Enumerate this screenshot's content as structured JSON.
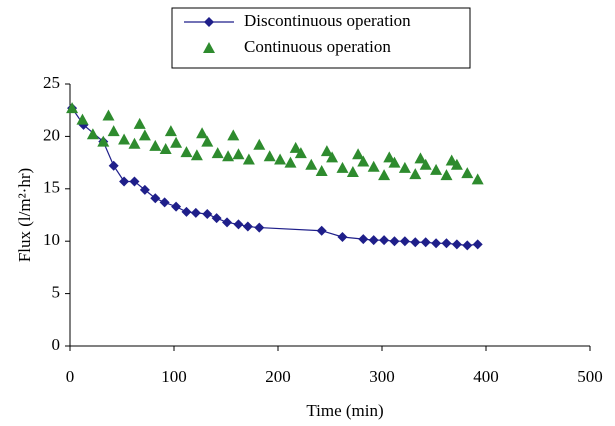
{
  "chart_data": {
    "type": "line",
    "xlabel": "Time (min)",
    "ylabel": "Flux (l/m²·hr)",
    "xlim": [
      0,
      500
    ],
    "xticks": [
      0,
      100,
      200,
      300,
      400,
      500
    ],
    "ylim": [
      0,
      25
    ],
    "yticks": [
      0,
      5,
      10,
      15,
      20,
      25
    ],
    "series": [
      {
        "name": "Discontinuous operation",
        "color": "#1f1f8a",
        "marker": "diamond",
        "line": true,
        "x": [
          2,
          13,
          32,
          42,
          52,
          62,
          72,
          82,
          91,
          102,
          112,
          121,
          132,
          141,
          151,
          162,
          171,
          182,
          242,
          262,
          282,
          292,
          302,
          312,
          322,
          332,
          342,
          352,
          362,
          372,
          382,
          392
        ],
        "values": [
          22.7,
          21.1,
          19.5,
          17.2,
          15.7,
          15.7,
          14.9,
          14.1,
          13.7,
          13.3,
          12.8,
          12.7,
          12.6,
          12.2,
          11.8,
          11.6,
          11.4,
          11.3,
          11.0,
          10.4,
          10.2,
          10.1,
          10.1,
          10.0,
          10.0,
          9.9,
          9.9,
          9.8,
          9.8,
          9.7,
          9.6,
          9.7
        ]
      },
      {
        "name": "Continuous operation",
        "color": "#2e8b2e",
        "marker": "triangle",
        "line": false,
        "x": [
          2,
          12,
          22,
          32,
          37,
          42,
          52,
          62,
          67,
          72,
          82,
          92,
          97,
          102,
          112,
          122,
          127,
          132,
          142,
          152,
          157,
          162,
          172,
          182,
          192,
          202,
          212,
          217,
          222,
          232,
          242,
          247,
          252,
          262,
          272,
          277,
          282,
          292,
          302,
          307,
          312,
          322,
          332,
          337,
          342,
          352,
          362,
          367,
          372,
          382,
          392
        ],
        "values": [
          22.7,
          21.6,
          20.2,
          19.5,
          22.0,
          20.5,
          19.7,
          19.3,
          21.2,
          20.1,
          19.1,
          18.8,
          20.5,
          19.4,
          18.5,
          18.2,
          20.3,
          19.5,
          18.4,
          18.1,
          20.1,
          18.3,
          17.8,
          19.2,
          18.1,
          17.8,
          17.5,
          18.9,
          18.4,
          17.3,
          16.7,
          18.6,
          18.0,
          17.0,
          16.6,
          18.3,
          17.6,
          17.1,
          16.3,
          18.0,
          17.5,
          17.0,
          16.4,
          17.9,
          17.3,
          16.8,
          16.3,
          17.7,
          17.3,
          16.5,
          15.9
        ]
      }
    ]
  }
}
